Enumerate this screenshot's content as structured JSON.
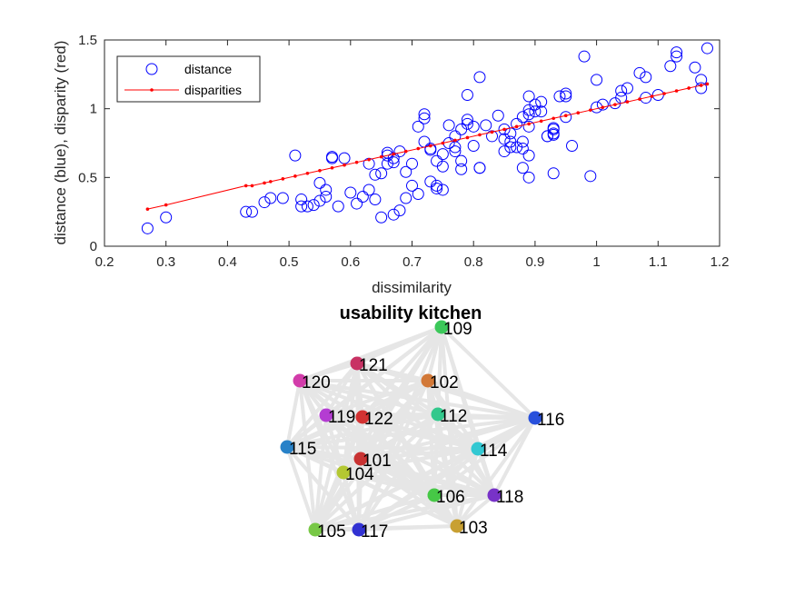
{
  "chart_data": [
    {
      "type": "scatter",
      "title": "",
      "xlabel": "dissimilarity",
      "ylabel": "distance (blue), disparity (red)",
      "xlim": [
        0.2,
        1.2
      ],
      "ylim": [
        0,
        1.5
      ],
      "xticks": [
        "0.2",
        "0.3",
        "0.4",
        "0.5",
        "0.6",
        "0.7",
        "0.8",
        "0.9",
        "1",
        "1.1",
        "1.2"
      ],
      "yticks": [
        "0",
        "0.5",
        "1",
        "1.5"
      ],
      "legend": {
        "placement": "top-left",
        "entries": [
          "distance",
          "disparities"
        ]
      },
      "colors": {
        "distance": "#0000ff",
        "disparities": "#ff0000"
      },
      "series": [
        {
          "name": "distance",
          "marker": "open-circle",
          "points": [
            [
              0.27,
              0.13
            ],
            [
              0.3,
              0.21
            ],
            [
              0.43,
              0.25
            ],
            [
              0.44,
              0.25
            ],
            [
              0.46,
              0.32
            ],
            [
              0.47,
              0.35
            ],
            [
              0.49,
              0.35
            ],
            [
              0.51,
              0.66
            ],
            [
              0.52,
              0.34
            ],
            [
              0.52,
              0.29
            ],
            [
              0.53,
              0.29
            ],
            [
              0.54,
              0.3
            ],
            [
              0.55,
              0.46
            ],
            [
              0.55,
              0.33
            ],
            [
              0.56,
              0.36
            ],
            [
              0.56,
              0.41
            ],
            [
              0.57,
              0.65
            ],
            [
              0.57,
              0.64
            ],
            [
              0.58,
              0.29
            ],
            [
              0.59,
              0.64
            ],
            [
              0.6,
              0.39
            ],
            [
              0.61,
              0.31
            ],
            [
              0.62,
              0.36
            ],
            [
              0.63,
              0.6
            ],
            [
              0.63,
              0.41
            ],
            [
              0.64,
              0.52
            ],
            [
              0.64,
              0.34
            ],
            [
              0.65,
              0.21
            ],
            [
              0.65,
              0.53
            ],
            [
              0.66,
              0.6
            ],
            [
              0.66,
              0.68
            ],
            [
              0.66,
              0.66
            ],
            [
              0.67,
              0.61
            ],
            [
              0.67,
              0.64
            ],
            [
              0.67,
              0.23
            ],
            [
              0.68,
              0.69
            ],
            [
              0.68,
              0.26
            ],
            [
              0.69,
              0.54
            ],
            [
              0.69,
              0.35
            ],
            [
              0.7,
              0.44
            ],
            [
              0.7,
              0.6
            ],
            [
              0.71,
              0.38
            ],
            [
              0.71,
              0.87
            ],
            [
              0.72,
              0.76
            ],
            [
              0.72,
              0.93
            ],
            [
              0.72,
              0.96
            ],
            [
              0.73,
              0.7
            ],
            [
              0.73,
              0.71
            ],
            [
              0.73,
              0.47
            ],
            [
              0.74,
              0.42
            ],
            [
              0.74,
              0.62
            ],
            [
              0.74,
              0.44
            ],
            [
              0.75,
              0.58
            ],
            [
              0.75,
              0.67
            ],
            [
              0.75,
              0.41
            ],
            [
              0.76,
              0.88
            ],
            [
              0.76,
              0.75
            ],
            [
              0.77,
              0.8
            ],
            [
              0.77,
              0.69
            ],
            [
              0.77,
              0.72
            ],
            [
              0.78,
              0.85
            ],
            [
              0.78,
              0.62
            ],
            [
              0.78,
              0.56
            ],
            [
              0.79,
              0.92
            ],
            [
              0.79,
              1.1
            ],
            [
              0.79,
              0.89
            ],
            [
              0.8,
              0.73
            ],
            [
              0.8,
              0.87
            ],
            [
              0.81,
              0.57
            ],
            [
              0.81,
              0.57
            ],
            [
              0.81,
              1.23
            ],
            [
              0.82,
              0.88
            ],
            [
              0.83,
              0.8
            ],
            [
              0.84,
              0.95
            ],
            [
              0.85,
              0.85
            ],
            [
              0.85,
              0.78
            ],
            [
              0.85,
              0.69
            ],
            [
              0.86,
              0.82
            ],
            [
              0.86,
              0.76
            ],
            [
              0.86,
              0.72
            ],
            [
              0.87,
              0.72
            ],
            [
              0.87,
              0.89
            ],
            [
              0.88,
              0.94
            ],
            [
              0.88,
              0.76
            ],
            [
              0.88,
              0.71
            ],
            [
              0.88,
              0.57
            ],
            [
              0.89,
              1.09
            ],
            [
              0.89,
              0.99
            ],
            [
              0.89,
              0.96
            ],
            [
              0.89,
              0.87
            ],
            [
              0.89,
              0.66
            ],
            [
              0.89,
              0.5
            ],
            [
              0.9,
              1.03
            ],
            [
              0.9,
              0.98
            ],
            [
              0.91,
              0.98
            ],
            [
              0.91,
              1.05
            ],
            [
              0.92,
              0.8
            ],
            [
              0.92,
              0.8
            ],
            [
              0.93,
              0.81
            ],
            [
              0.93,
              0.82
            ],
            [
              0.93,
              0.86
            ],
            [
              0.93,
              0.85
            ],
            [
              0.93,
              0.53
            ],
            [
              0.94,
              1.09
            ],
            [
              0.95,
              1.11
            ],
            [
              0.95,
              1.09
            ],
            [
              0.95,
              0.94
            ],
            [
              0.96,
              0.73
            ],
            [
              0.98,
              1.38
            ],
            [
              0.99,
              0.51
            ],
            [
              1.0,
              1.01
            ],
            [
              1.0,
              1.21
            ],
            [
              1.01,
              1.03
            ],
            [
              1.03,
              1.04
            ],
            [
              1.04,
              1.13
            ],
            [
              1.04,
              1.08
            ],
            [
              1.05,
              1.15
            ],
            [
              1.07,
              1.26
            ],
            [
              1.08,
              1.23
            ],
            [
              1.08,
              1.08
            ],
            [
              1.1,
              1.1
            ],
            [
              1.12,
              1.31
            ],
            [
              1.13,
              1.38
            ],
            [
              1.13,
              1.41
            ],
            [
              1.16,
              1.3
            ],
            [
              1.17,
              1.15
            ],
            [
              1.17,
              1.21
            ],
            [
              1.18,
              1.44
            ]
          ]
        },
        {
          "name": "disparities",
          "marker": "line-with-points",
          "points": [
            [
              0.27,
              0.27
            ],
            [
              0.3,
              0.3
            ],
            [
              0.43,
              0.44
            ],
            [
              0.44,
              0.44
            ],
            [
              0.46,
              0.46
            ],
            [
              0.47,
              0.47
            ],
            [
              0.49,
              0.49
            ],
            [
              0.51,
              0.51
            ],
            [
              0.53,
              0.53
            ],
            [
              0.55,
              0.55
            ],
            [
              0.57,
              0.57
            ],
            [
              0.59,
              0.59
            ],
            [
              0.61,
              0.61
            ],
            [
              0.63,
              0.63
            ],
            [
              0.65,
              0.65
            ],
            [
              0.67,
              0.67
            ],
            [
              0.69,
              0.69
            ],
            [
              0.71,
              0.71
            ],
            [
              0.73,
              0.73
            ],
            [
              0.75,
              0.75
            ],
            [
              0.77,
              0.77
            ],
            [
              0.79,
              0.79
            ],
            [
              0.81,
              0.81
            ],
            [
              0.83,
              0.83
            ],
            [
              0.85,
              0.85
            ],
            [
              0.87,
              0.87
            ],
            [
              0.89,
              0.89
            ],
            [
              0.91,
              0.91
            ],
            [
              0.93,
              0.93
            ],
            [
              0.95,
              0.95
            ],
            [
              0.97,
              0.97
            ],
            [
              0.99,
              0.99
            ],
            [
              1.01,
              1.01
            ],
            [
              1.03,
              1.03
            ],
            [
              1.05,
              1.05
            ],
            [
              1.07,
              1.07
            ],
            [
              1.09,
              1.09
            ],
            [
              1.11,
              1.11
            ],
            [
              1.13,
              1.13
            ],
            [
              1.15,
              1.15
            ],
            [
              1.17,
              1.17
            ],
            [
              1.18,
              1.18
            ]
          ]
        }
      ]
    },
    {
      "type": "network",
      "title": "usability kitchen",
      "edge_color": "#e6e6e6",
      "nodes": [
        {
          "label": "109",
          "color": "#3cc85a"
        },
        {
          "label": "121",
          "color": "#c83264"
        },
        {
          "label": "102",
          "color": "#d27837"
        },
        {
          "label": "120",
          "color": "#d23caa"
        },
        {
          "label": "119",
          "color": "#b43cd2"
        },
        {
          "label": "122",
          "color": "#d23232"
        },
        {
          "label": "112",
          "color": "#32c88c"
        },
        {
          "label": "116",
          "color": "#2850dc"
        },
        {
          "label": "115",
          "color": "#2882c8"
        },
        {
          "label": "101",
          "color": "#c83232"
        },
        {
          "label": "114",
          "color": "#32c8d2"
        },
        {
          "label": "104",
          "color": "#b4c832"
        },
        {
          "label": "106",
          "color": "#46c846"
        },
        {
          "label": "118",
          "color": "#7832c8"
        },
        {
          "label": "105",
          "color": "#78c846"
        },
        {
          "label": "117",
          "color": "#3232d2"
        },
        {
          "label": "103",
          "color": "#c8a032"
        }
      ]
    }
  ]
}
